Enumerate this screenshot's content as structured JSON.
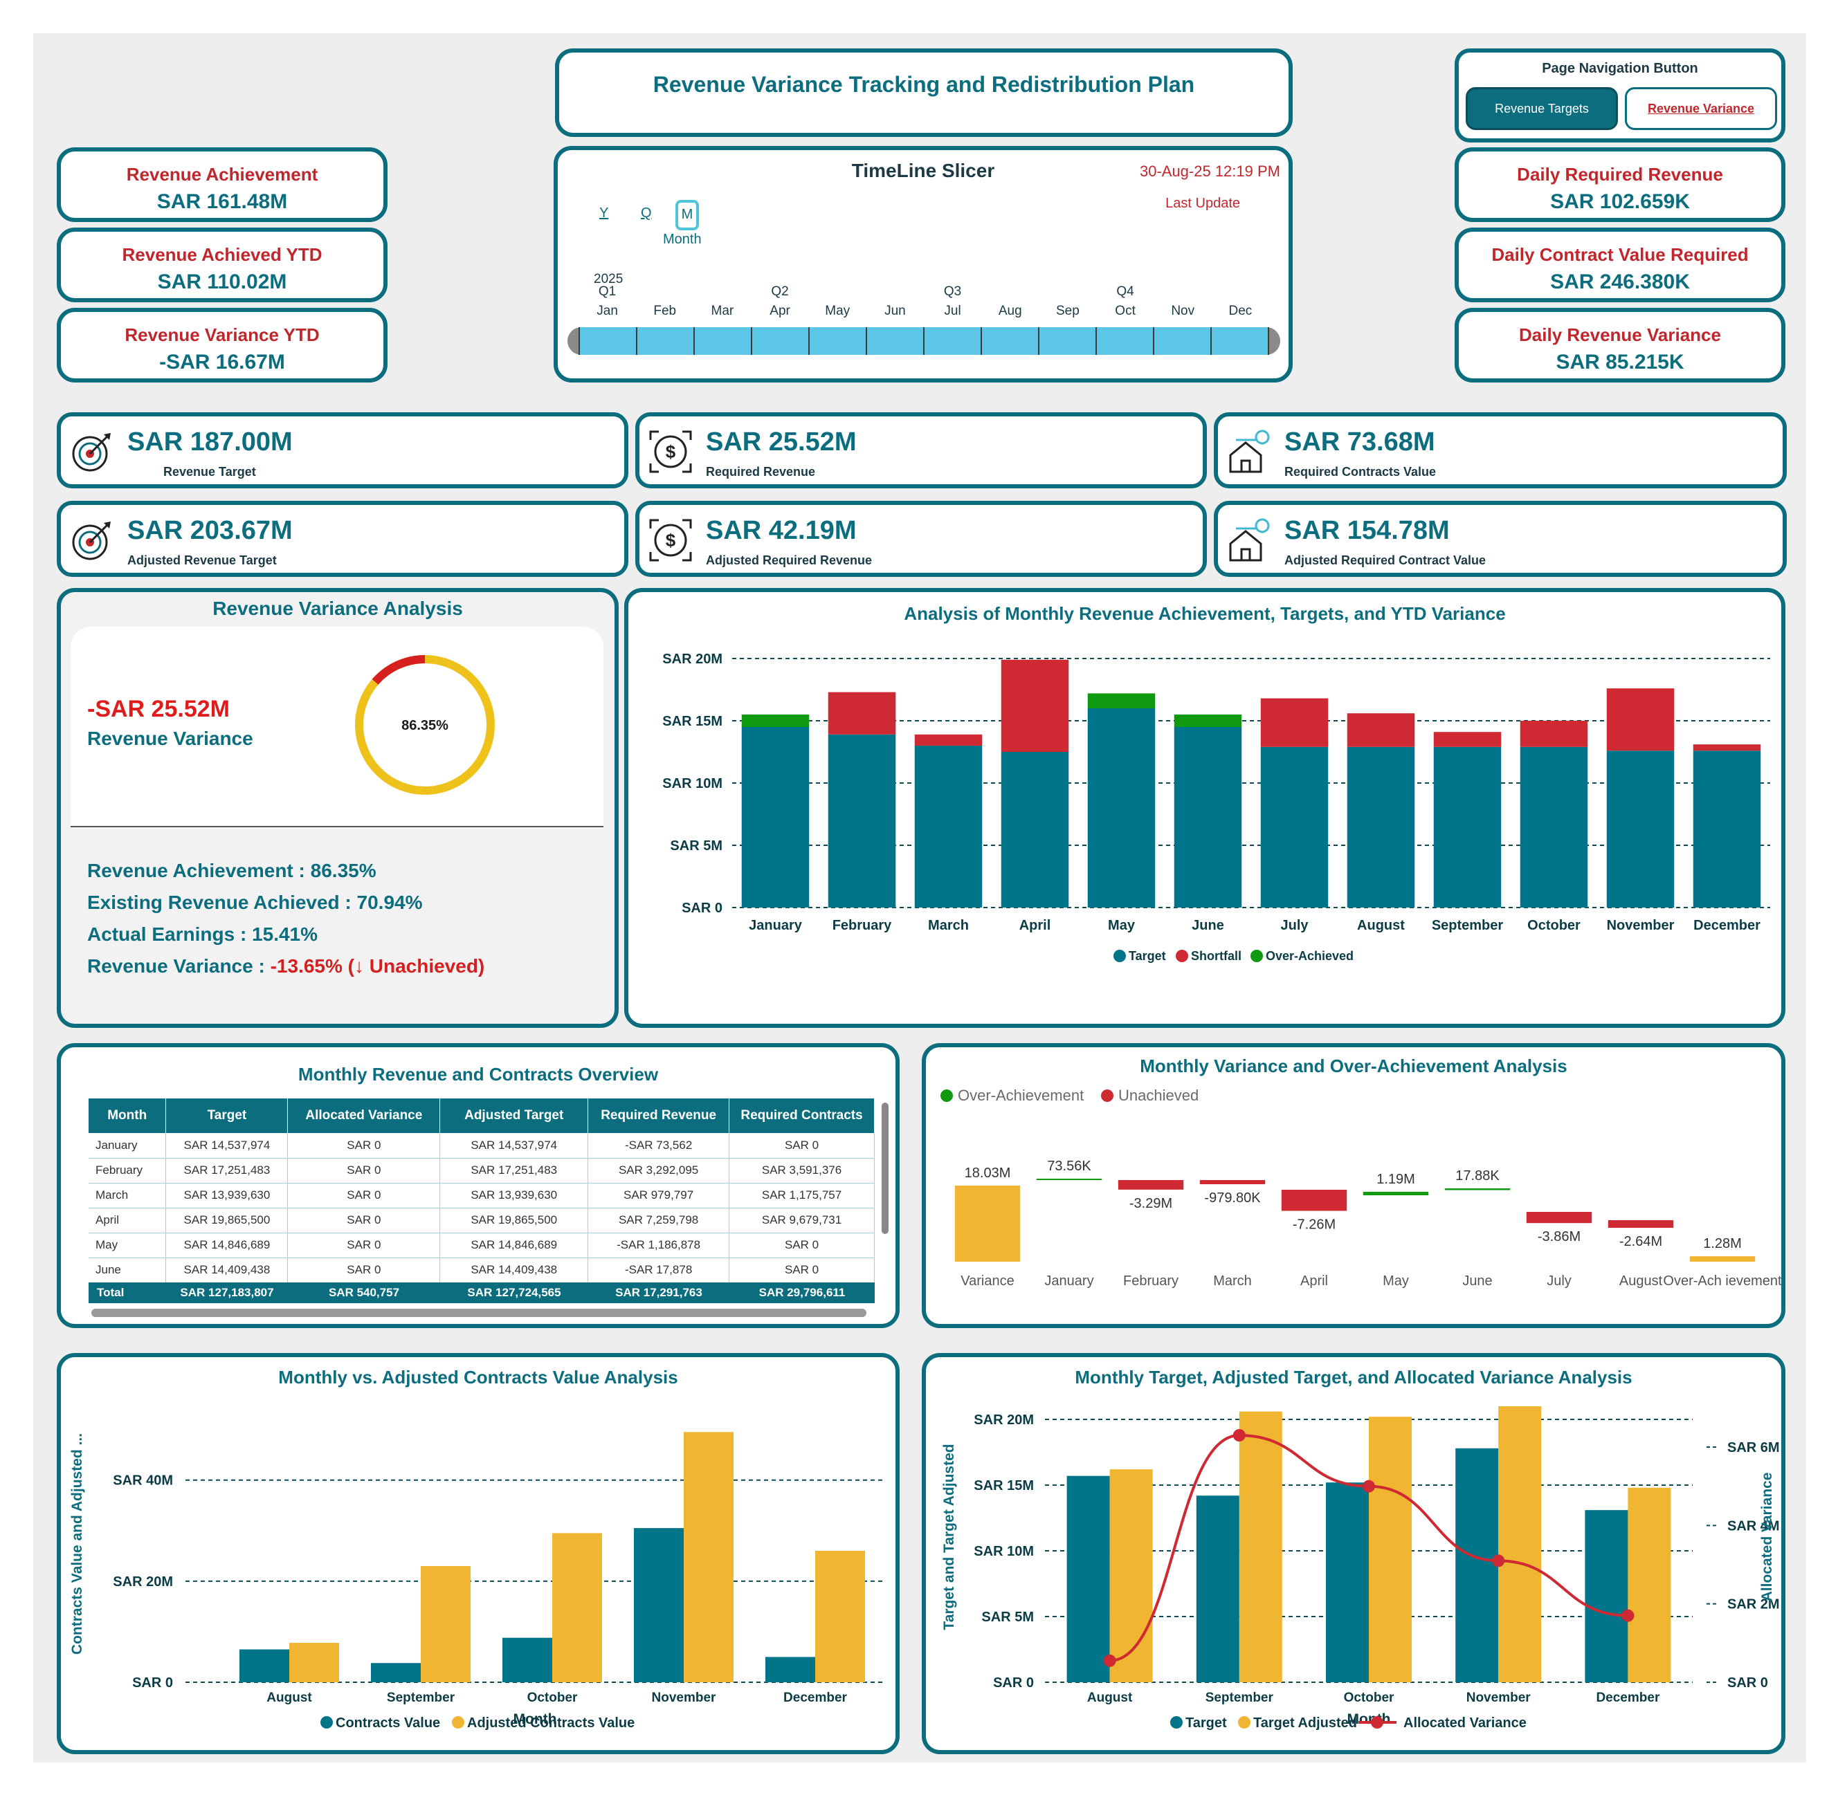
{
  "title": "Revenue Variance Tracking and Redistribution Plan",
  "nav": {
    "title": "Page Navigation Button",
    "btn_targets": "Revenue Targets",
    "btn_variance": "Revenue Variance"
  },
  "kpis_left": [
    {
      "label": "Revenue Achievement",
      "value": "SAR 161.48M"
    },
    {
      "label": "Revenue Achieved YTD",
      "value": "SAR 110.02M"
    },
    {
      "label": "Revenue Variance YTD",
      "value": "-SAR 16.67M"
    }
  ],
  "kpis_right": [
    {
      "label": "Daily Required Revenue",
      "value": "SAR 102.659K"
    },
    {
      "label": "Daily Contract Value Required",
      "value": "SAR 246.380K"
    },
    {
      "label": "Daily Revenue Variance",
      "value": "SAR 85.215K"
    }
  ],
  "timeline": {
    "title": "TimeLine Slicer",
    "date": "30-Aug-25 12:19 PM",
    "date_label": "Last Update",
    "levels": [
      "Y",
      "Q",
      "M"
    ],
    "level_name": "Month",
    "year": "2025",
    "quarters": [
      "Q1",
      "Q2",
      "Q3",
      "Q4"
    ],
    "months": [
      "Jan",
      "Feb",
      "Mar",
      "Apr",
      "May",
      "Jun",
      "Jul",
      "Aug",
      "Sep",
      "Oct",
      "Nov",
      "Dec"
    ]
  },
  "metrics": [
    {
      "value": "SAR 187.00M",
      "label": "Revenue Target",
      "icon": "target-icon"
    },
    {
      "value": "SAR 25.52M",
      "label": "Required Revenue",
      "icon": "dollar-target-icon"
    },
    {
      "value": "SAR 73.68M",
      "label": "Required Contracts Value",
      "icon": "house-key-icon"
    },
    {
      "value": "SAR 203.67M",
      "label": "Adjusted Revenue Target",
      "icon": "target-icon"
    },
    {
      "value": "SAR 42.19M",
      "label": "Adjusted Required Revenue",
      "icon": "dollar-target-icon"
    },
    {
      "value": "SAR 154.78M",
      "label": "Adjusted Required Contract Value",
      "icon": "house-key-icon"
    }
  ],
  "variance_analysis": {
    "title": "Revenue Variance Analysis",
    "value": "-SAR 25.52M",
    "value_label": "Revenue Variance",
    "gauge_text": "86.35%",
    "gauge_fraction": 0.8635,
    "lines": [
      {
        "label": "Revenue Achievement : ",
        "value": "86.35%"
      },
      {
        "label": "Existing Revenue Achieved : ",
        "value": "70.94%"
      },
      {
        "label": "Actual Earnings : ",
        "value": "15.41%"
      }
    ],
    "variance_label": "Revenue Variance : ",
    "variance_value": "-13.65% (",
    "variance_arrow": "↓",
    "variance_status": " Unachieved)"
  },
  "chart_data": [
    {
      "type": "bar",
      "title": "Analysis of Monthly Revenue Achievement, Targets, and YTD Variance",
      "categories": [
        "January",
        "February",
        "March",
        "April",
        "May",
        "June",
        "July",
        "August",
        "September",
        "October",
        "November",
        "December"
      ],
      "series": [
        {
          "name": "Target",
          "color": "#00758a",
          "values": [
            14.5,
            13.9,
            13.0,
            12.5,
            16.0,
            14.5,
            12.9,
            12.9,
            12.9,
            12.9,
            12.6,
            12.6
          ]
        },
        {
          "name": "Shortfall",
          "color": "#cf2a33",
          "values": [
            0,
            3.4,
            0.9,
            7.4,
            0,
            0,
            3.9,
            2.7,
            1.2,
            2.1,
            5.0,
            0.5
          ]
        },
        {
          "name": "Over-Achieved",
          "color": "#109a10",
          "values": [
            1.0,
            0,
            0,
            0,
            1.2,
            1.0,
            0,
            0,
            0,
            0,
            0,
            0
          ]
        }
      ],
      "yticks": [
        "SAR 0",
        "SAR 5M",
        "SAR 10M",
        "SAR 15M",
        "SAR 20M"
      ],
      "ylim": [
        0,
        20
      ],
      "legend": "bottom"
    },
    {
      "type": "table",
      "title": "Monthly Revenue and Contracts Overview",
      "columns": [
        "Month",
        "Target",
        "Allocated Variance",
        "Adjusted Target",
        "Required Revenue",
        "Required Contracts"
      ],
      "rows": [
        [
          "January",
          "SAR 14,537,974",
          "SAR 0",
          "SAR 14,537,974",
          "-SAR 73,562",
          "SAR 0"
        ],
        [
          "February",
          "SAR 17,251,483",
          "SAR 0",
          "SAR 17,251,483",
          "SAR 3,292,095",
          "SAR 3,591,376"
        ],
        [
          "March",
          "SAR 13,939,630",
          "SAR 0",
          "SAR 13,939,630",
          "SAR 979,797",
          "SAR 1,175,757"
        ],
        [
          "April",
          "SAR 19,865,500",
          "SAR 0",
          "SAR 19,865,500",
          "SAR 7,259,798",
          "SAR 9,679,731"
        ],
        [
          "May",
          "SAR 14,846,689",
          "SAR 0",
          "SAR 14,846,689",
          "-SAR 1,186,878",
          "SAR 0"
        ],
        [
          "June",
          "SAR 14,409,438",
          "SAR 0",
          "SAR 14,409,438",
          "-SAR 17,878",
          "SAR 0"
        ]
      ],
      "total": [
        "Total",
        "SAR 127,183,807",
        "SAR 540,757",
        "SAR 127,724,565",
        "SAR 17,291,763",
        "SAR 29,796,611"
      ]
    },
    {
      "type": "bar",
      "title": "Monthly Variance and Over-Achievement Analysis",
      "legend_items": [
        {
          "name": "Over-Achievement",
          "color": "#109a10"
        },
        {
          "name": "Unachieved",
          "color": "#cf2a33"
        }
      ],
      "categories": [
        "Variance",
        "January",
        "February",
        "March",
        "April",
        "May",
        "June",
        "July",
        "August",
        "Over-Ach ievement"
      ],
      "values": [
        18.03,
        0.07356,
        -3.29,
        -0.9798,
        -7.26,
        1.19,
        0.01788,
        -3.86,
        -2.64,
        1.28
      ],
      "labels": [
        "18.03M",
        "73.56K",
        "-3.29M",
        "-979.80K",
        "-7.26M",
        "1.19M",
        "17.88K",
        "-3.86M",
        "-2.64M",
        "1.28M"
      ]
    },
    {
      "type": "bar",
      "title": "Monthly vs. Adjusted Contracts Value Analysis",
      "categories": [
        "August",
        "September",
        "October",
        "November",
        "December"
      ],
      "series": [
        {
          "name": "Contracts Value",
          "color": "#00758a",
          "values": [
            6.5,
            3.8,
            8.8,
            30.5,
            5.0
          ]
        },
        {
          "name": "Adjusted Contracts Value",
          "color": "#f0b632",
          "values": [
            7.8,
            23.0,
            29.5,
            49.5,
            26.0
          ]
        }
      ],
      "yticks": [
        "SAR 0",
        "SAR 20M",
        "SAR 40M"
      ],
      "ylim": [
        0,
        52
      ],
      "xlabel": "Month",
      "ylabel": "Contracts Value and Adjusted ...",
      "legend": "bottom"
    },
    {
      "type": "bar",
      "title": "Monthly Target, Adjusted Target, and Allocated Variance Analysis",
      "categories": [
        "August",
        "September",
        "October",
        "November",
        "December"
      ],
      "series": [
        {
          "name": "Target",
          "color": "#00758a",
          "values": [
            15.7,
            14.2,
            15.2,
            17.8,
            13.1
          ]
        },
        {
          "name": "Target Adjusted",
          "color": "#f0b632",
          "values": [
            16.2,
            20.6,
            20.2,
            21.0,
            14.8
          ]
        },
        {
          "name": "Allocated Variance",
          "color": "#cf2a33",
          "type": "line",
          "axis": "right",
          "values": [
            0.55,
            6.3,
            5.0,
            3.1,
            1.7
          ]
        }
      ],
      "yticks": [
        "SAR 0",
        "SAR 5M",
        "SAR 10M",
        "SAR 15M",
        "SAR 20M"
      ],
      "ylim": [
        0,
        20
      ],
      "y2ticks": [
        "SAR 0",
        "SAR 2M",
        "SAR 4M",
        "SAR 6M"
      ],
      "y2lim": [
        0,
        6
      ],
      "xlabel": "Month",
      "ylabel": "Target and Target Adjusted",
      "y2label": "Allocated Variance",
      "legend": "bottom"
    }
  ]
}
